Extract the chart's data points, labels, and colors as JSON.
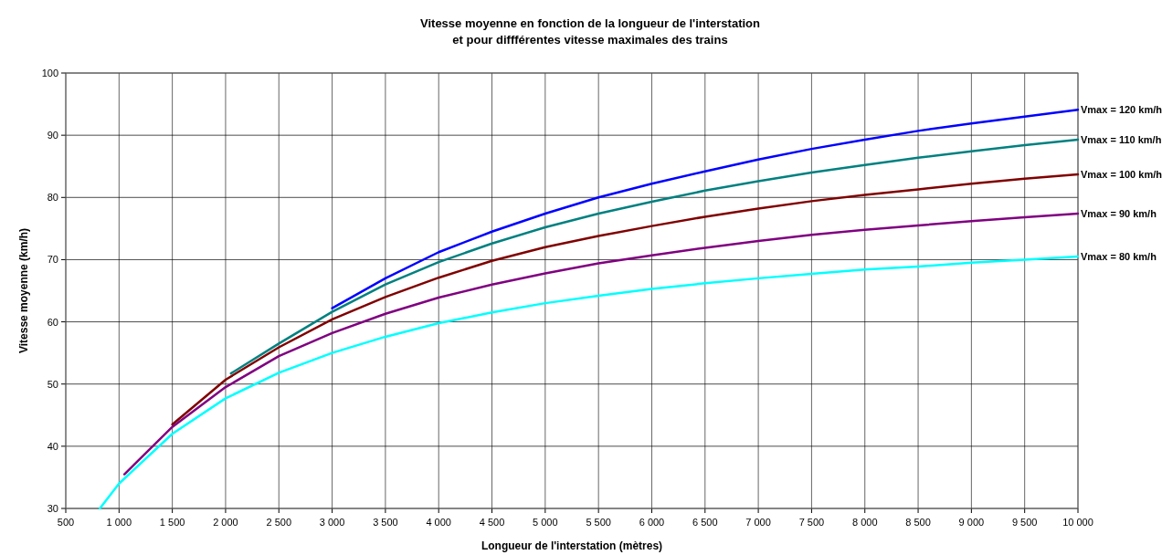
{
  "chart_data": {
    "type": "line",
    "title": "Vitesse moyenne en fonction de la longueur de l'interstation\net pour diffférentes vitesse maximales des trains",
    "xlabel": "Longueur de l'interstation (mètres)",
    "ylabel": "Vitesse moyenne (km/h)",
    "xlim": [
      500,
      10000
    ],
    "ylim": [
      30,
      100
    ],
    "xticks": [
      500,
      {
        "value": 1000,
        "label": "1 000"
      },
      {
        "value": 1500,
        "label": "1 500"
      },
      {
        "value": 2000,
        "label": "2 000"
      },
      {
        "value": 2500,
        "label": "2 500"
      },
      {
        "value": 3000,
        "label": "3 000"
      },
      {
        "value": 3500,
        "label": "3 500"
      },
      {
        "value": 4000,
        "label": "4 000"
      },
      {
        "value": 4500,
        "label": "4 500"
      },
      {
        "value": 5000,
        "label": "5 000"
      },
      {
        "value": 5500,
        "label": "5 500"
      },
      {
        "value": 6000,
        "label": "6 000"
      },
      {
        "value": 6500,
        "label": "6 500"
      },
      {
        "value": 7000,
        "label": "7 000"
      },
      {
        "value": 7500,
        "label": "7 500"
      },
      {
        "value": 8000,
        "label": "8 000"
      },
      {
        "value": 8500,
        "label": "8 500"
      },
      {
        "value": 9000,
        "label": "9 000"
      },
      {
        "value": 9500,
        "label": "9 500"
      },
      {
        "value": 10000,
        "label": "10 000"
      }
    ],
    "yticks": [
      30,
      40,
      50,
      60,
      70,
      80,
      90,
      100
    ],
    "grid": true,
    "marker": "none",
    "line_style": "solid",
    "series": [
      {
        "name": "Vmax = 120 km/h",
        "color": "#0000ff",
        "x": [
          3000,
          3500,
          4000,
          4500,
          5000,
          5500,
          6000,
          6500,
          7000,
          7500,
          8000,
          8500,
          9000,
          9500,
          10000
        ],
        "values": [
          62.2,
          67,
          71.2,
          74.5,
          77.4,
          80,
          82.2,
          84.2,
          86.1,
          87.8,
          89.3,
          90.7,
          91.9,
          93,
          94.1
        ]
      },
      {
        "name": "Vmax = 110 km/h",
        "color": "#008080",
        "x": [
          2050,
          2500,
          3000,
          3500,
          4000,
          4500,
          5000,
          5500,
          6000,
          6500,
          7000,
          7500,
          8000,
          8500,
          9000,
          9500,
          10000
        ],
        "values": [
          51.7,
          56.5,
          61.6,
          66,
          69.6,
          72.6,
          75.2,
          77.4,
          79.3,
          81.1,
          82.6,
          84,
          85.2,
          86.4,
          87.4,
          88.4,
          89.3
        ]
      },
      {
        "name": "Vmax = 100 km/h",
        "color": "#800000",
        "x": [
          1500,
          2000,
          2500,
          3000,
          3500,
          4000,
          4500,
          5000,
          5500,
          6000,
          6500,
          7000,
          7500,
          8000,
          8500,
          9000,
          9500,
          10000
        ],
        "values": [
          43.5,
          50.7,
          55.9,
          60.4,
          64,
          67.1,
          69.8,
          72,
          73.8,
          75.4,
          76.9,
          78.2,
          79.4,
          80.4,
          81.3,
          82.2,
          83,
          83.7
        ]
      },
      {
        "name": "Vmax = 90 km/h",
        "color": "#800080",
        "x": [
          1050,
          1500,
          2000,
          2500,
          3000,
          3500,
          4000,
          4500,
          5000,
          5500,
          6000,
          6500,
          7000,
          7500,
          8000,
          8500,
          9000,
          9500,
          10000
        ],
        "values": [
          35.5,
          43.1,
          49.5,
          54.5,
          58.2,
          61.3,
          63.9,
          66,
          67.8,
          69.4,
          70.7,
          71.9,
          73,
          74,
          74.8,
          75.5,
          76.2,
          76.8,
          77.4
        ]
      },
      {
        "name": "Vmax = 80 km/h",
        "color": "#00ffff",
        "x": [
          820,
          1000,
          1500,
          2000,
          2500,
          3000,
          3500,
          4000,
          4500,
          5000,
          5500,
          6000,
          6500,
          7000,
          7500,
          8000,
          8500,
          9000,
          9500,
          10000
        ],
        "values": [
          30,
          34,
          42,
          47.7,
          51.8,
          55,
          57.6,
          59.8,
          61.5,
          63,
          64.2,
          65.3,
          66.2,
          67,
          67.7,
          68.4,
          68.9,
          69.5,
          70,
          70.5
        ]
      }
    ]
  }
}
